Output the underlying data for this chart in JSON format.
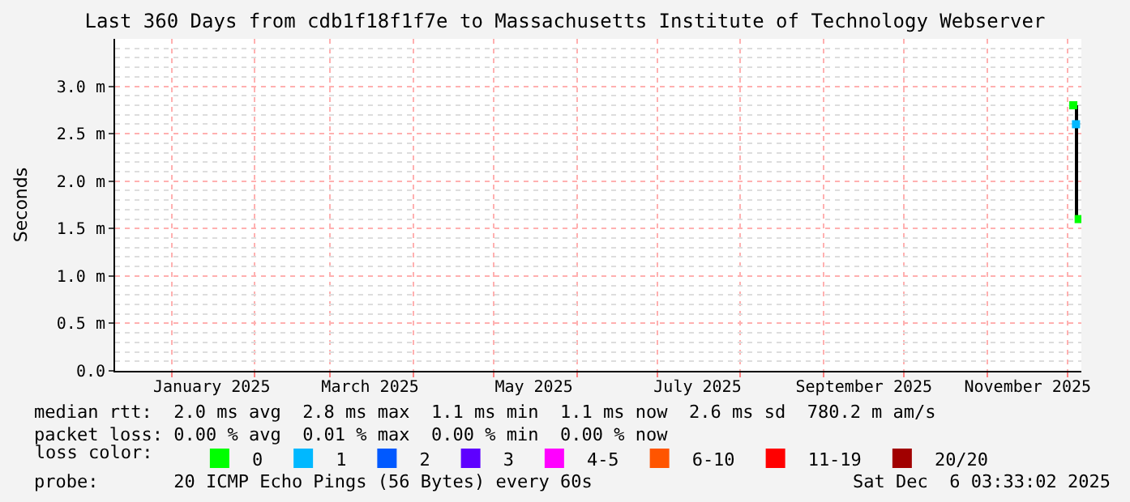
{
  "chart_data": {
    "type": "scatter",
    "title": "Last 360 Days from cdb1f18f1f7e to Massachusetts Institute of Technology Webserver",
    "ylabel": "Seconds",
    "legend_title": "loss color:",
    "legend": "bottom",
    "marker": "square",
    "grid": true,
    "xlim": [
      "2024-12-11",
      "2025-12-06"
    ],
    "xticks": [
      {
        "value": "2025-01-16",
        "label": "January 2025"
      },
      {
        "value": "2025-03-16",
        "label": "March 2025"
      },
      {
        "value": "2025-05-16",
        "label": "May 2025"
      },
      {
        "value": "2025-07-16",
        "label": "July 2025"
      },
      {
        "value": "2025-09-16",
        "label": "September 2025"
      },
      {
        "value": "2025-11-16",
        "label": "November 2025"
      }
    ],
    "ylim": [
      0,
      3.5
    ],
    "yticks": [
      {
        "value": 0,
        "label": "0.0"
      },
      {
        "value": 0.5,
        "label": "0.5 m"
      },
      {
        "value": 1.0,
        "label": "1.0 m"
      },
      {
        "value": 1.5,
        "label": "1.5 m"
      },
      {
        "value": 2.0,
        "label": "2.0 m"
      },
      {
        "value": 2.5,
        "label": "2.5 m"
      },
      {
        "value": 3.0,
        "label": "3.0 m"
      }
    ],
    "series": [
      {
        "type": "bar",
        "color": "#000000",
        "x": [
          "2025-12-04"
        ],
        "base": [
          1.6
        ],
        "values": [
          1.2
        ]
      },
      {
        "name": "0",
        "color": "#00ff00",
        "x": [
          "2025-12-03",
          "2025-12-05"
        ],
        "values": [
          2.8,
          1.6
        ]
      },
      {
        "name": "1",
        "color": "#00b8ff",
        "x": [
          "2025-12-04"
        ],
        "values": [
          2.6
        ]
      },
      {
        "name": "2",
        "color": "#0059ff"
      },
      {
        "name": "3",
        "color": "#5e00ff"
      },
      {
        "name": "4-5",
        "color": "#ff00ff"
      },
      {
        "name": "6-10",
        "color": "#ff5500"
      },
      {
        "name": "11-19",
        "color": "#ff0000"
      },
      {
        "name": "20/20",
        "color": "#a10000"
      }
    ],
    "annotations": [
      "median rtt:  2.0 ms avg  2.8 ms max  1.1 ms min  1.1 ms now  2.6 ms sd  780.2 m am/s",
      "packet loss: 0.00 % avg  0.01 % max  0.00 % min  0.00 % now",
      "probe:       20 ICMP Echo Pings (56 Bytes) every 60s",
      "Sat Dec  6 03:33:02 2025"
    ]
  }
}
